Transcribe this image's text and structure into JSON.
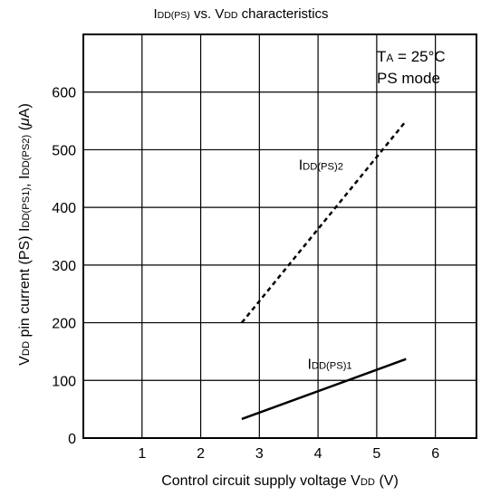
{
  "chart_data": {
    "type": "line",
    "title": {
      "parts": [
        {
          "text": "I",
          "sub": false
        },
        {
          "text": "DD(PS)",
          "sub": true
        },
        {
          "text": " vs. V",
          "sub": false
        },
        {
          "text": "DD",
          "sub": true
        },
        {
          "text": " characteristics",
          "sub": false
        }
      ]
    },
    "xlabel": {
      "parts": [
        {
          "text": "Control circuit supply voltage  V",
          "sub": false
        },
        {
          "text": "DD",
          "sub": true
        },
        {
          "text": "  (V)",
          "sub": false
        }
      ]
    },
    "ylabel": {
      "parts": [
        {
          "text": "V",
          "sub": false
        },
        {
          "text": "DD",
          "sub": true
        },
        {
          "text": " pin current (PS)  I",
          "sub": false
        },
        {
          "text": "DD(PS1)",
          "sub": true
        },
        {
          "text": ", I",
          "sub": false
        },
        {
          "text": "DD(PS2)",
          "sub": true
        },
        {
          "text": "  (",
          "sub": false
        },
        {
          "text": "μ",
          "sub": false,
          "italic": true
        },
        {
          "text": "A)",
          "sub": false
        }
      ]
    },
    "xlim": [
      0,
      6.7
    ],
    "ylim": [
      0,
      700
    ],
    "x_ticks": [
      1,
      2,
      3,
      4,
      5,
      6
    ],
    "y_ticks": [
      0,
      100,
      200,
      300,
      400,
      500,
      600
    ],
    "grid": true,
    "annotation": {
      "line1": {
        "parts": [
          {
            "text": "T",
            "sub": false
          },
          {
            "text": "A",
            "sub": true
          },
          {
            "text": " = 25°C",
            "sub": false
          }
        ]
      },
      "line2": {
        "parts": [
          {
            "text": "PS mode",
            "sub": false
          }
        ]
      },
      "placement": "top-right"
    },
    "series": [
      {
        "name": {
          "parts": [
            {
              "text": "I",
              "sub": false
            },
            {
              "text": "DD(PS)1",
              "sub": true
            }
          ]
        },
        "style": "solid",
        "x": [
          2.7,
          5.5
        ],
        "y": [
          33,
          137
        ],
        "label_at": [
          4.2,
          120
        ]
      },
      {
        "name": {
          "parts": [
            {
              "text": "I",
              "sub": false
            },
            {
              "text": "DD(PS)2",
              "sub": true
            }
          ]
        },
        "style": "dashed",
        "x": [
          2.7,
          5.5
        ],
        "y": [
          200,
          550
        ],
        "label_at": [
          4.05,
          465
        ]
      }
    ],
    "colors": {
      "line": "#000000",
      "grid": "#000000"
    }
  }
}
